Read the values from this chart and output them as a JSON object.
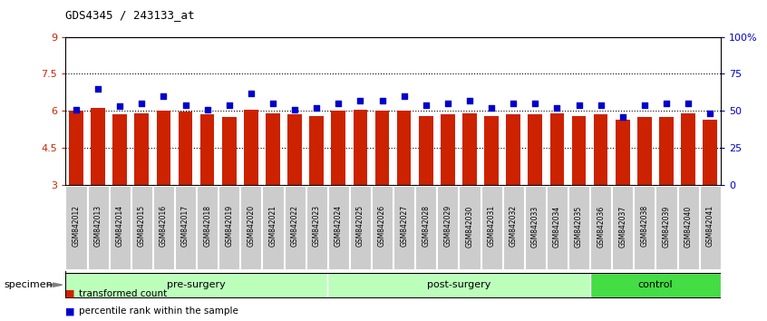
{
  "title": "GDS4345 / 243133_at",
  "categories": [
    "GSM842012",
    "GSM842013",
    "GSM842014",
    "GSM842015",
    "GSM842016",
    "GSM842017",
    "GSM842018",
    "GSM842019",
    "GSM842020",
    "GSM842021",
    "GSM842022",
    "GSM842023",
    "GSM842024",
    "GSM842025",
    "GSM842026",
    "GSM842027",
    "GSM842028",
    "GSM842029",
    "GSM842030",
    "GSM842031",
    "GSM842032",
    "GSM842033",
    "GSM842034",
    "GSM842035",
    "GSM842036",
    "GSM842037",
    "GSM842038",
    "GSM842039",
    "GSM842040",
    "GSM842041"
  ],
  "bar_values": [
    6.0,
    6.1,
    5.85,
    5.9,
    6.0,
    5.95,
    5.85,
    5.75,
    6.05,
    5.9,
    5.85,
    5.8,
    6.0,
    6.05,
    6.0,
    6.0,
    5.8,
    5.85,
    5.9,
    5.8,
    5.85,
    5.85,
    5.9,
    5.8,
    5.85,
    5.65,
    5.75,
    5.75,
    5.9,
    5.65
  ],
  "dot_values": [
    51,
    65,
    53,
    55,
    60,
    54,
    51,
    54,
    62,
    55,
    51,
    52,
    55,
    57,
    57,
    60,
    54,
    55,
    57,
    52,
    55,
    55,
    52,
    54,
    54,
    46,
    54,
    55,
    55,
    48
  ],
  "bar_color": "#cc2200",
  "dot_color": "#0000cc",
  "ylim_left": [
    3,
    9
  ],
  "ylim_right": [
    0,
    100
  ],
  "yticks_left": [
    3,
    4.5,
    6,
    7.5,
    9
  ],
  "yticks_right": [
    0,
    25,
    50,
    75,
    100
  ],
  "ytick_labels_left": [
    "3",
    "4.5",
    "6",
    "7.5",
    "9"
  ],
  "ytick_labels_right": [
    "0",
    "25",
    "50",
    "75",
    "100%"
  ],
  "grid_lines": [
    4.5,
    6.0,
    7.5
  ],
  "groups": [
    {
      "label": "pre-surgery",
      "start": 0,
      "end": 12,
      "color": "#bbffbb"
    },
    {
      "label": "post-surgery",
      "start": 12,
      "end": 24,
      "color": "#bbffbb"
    },
    {
      "label": "control",
      "start": 24,
      "end": 30,
      "color": "#44dd44"
    }
  ],
  "specimen_label": "specimen",
  "legend": [
    {
      "label": "transformed count",
      "color": "#cc2200"
    },
    {
      "label": "percentile rank within the sample",
      "color": "#0000cc"
    }
  ],
  "bar_width": 0.65,
  "tick_label_bg": "#cccccc",
  "plot_bg": "white",
  "fig_bg": "white"
}
